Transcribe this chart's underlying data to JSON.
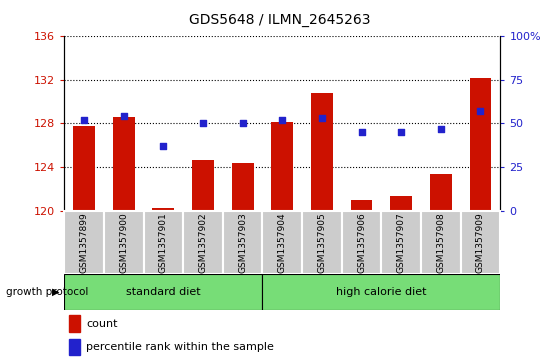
{
  "title": "GDS5648 / ILMN_2645263",
  "samples": [
    "GSM1357899",
    "GSM1357900",
    "GSM1357901",
    "GSM1357902",
    "GSM1357903",
    "GSM1357904",
    "GSM1357905",
    "GSM1357906",
    "GSM1357907",
    "GSM1357908",
    "GSM1357909"
  ],
  "counts": [
    127.8,
    128.6,
    120.2,
    124.6,
    124.4,
    128.1,
    130.8,
    121.0,
    121.3,
    123.4,
    132.2
  ],
  "percentiles": [
    52,
    54,
    37,
    50,
    50,
    52,
    53,
    45,
    45,
    47,
    57
  ],
  "ylim_left": [
    120,
    136
  ],
  "yticks_left": [
    120,
    124,
    128,
    132,
    136
  ],
  "ylim_right": [
    0,
    100
  ],
  "yticks_right": [
    0,
    25,
    50,
    75,
    100
  ],
  "bar_color": "#cc1100",
  "dot_color": "#2222cc",
  "bar_bottom": 120,
  "grid_color": "#000000",
  "groups": [
    {
      "label": "standard diet",
      "start": 0,
      "end": 5
    },
    {
      "label": "high calorie diet",
      "start": 5,
      "end": 11
    }
  ],
  "group_color": "#77dd77",
  "group_label": "growth protocol",
  "tick_color_left": "#cc1100",
  "tick_color_right": "#2222cc",
  "legend_count_label": "count",
  "legend_percentile_label": "percentile rank within the sample",
  "sample_box_color": "#cccccc"
}
